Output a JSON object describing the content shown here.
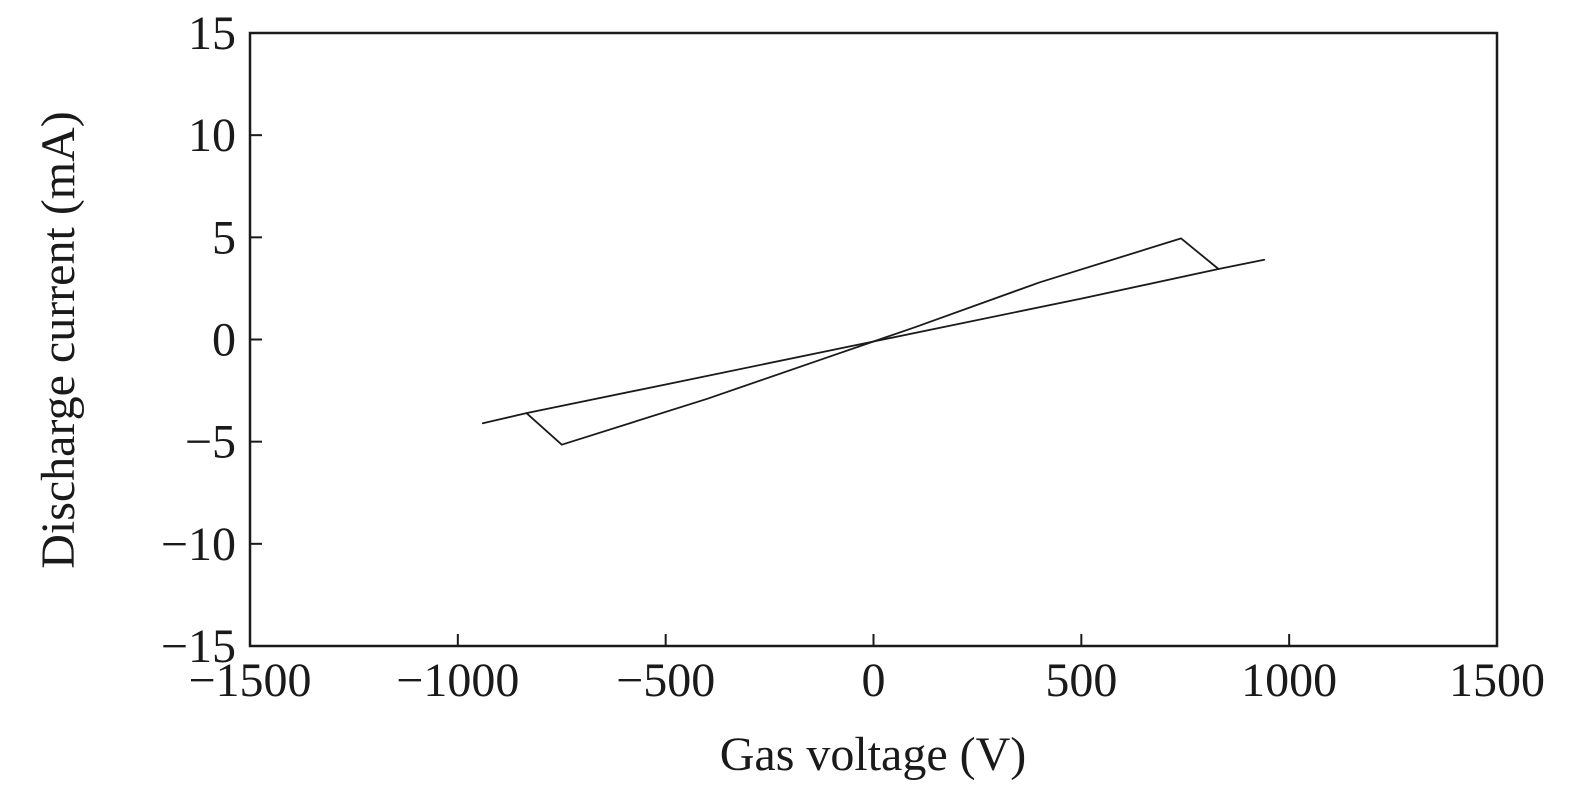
{
  "chart_data": {
    "type": "line",
    "title": "",
    "xlabel": "Gas voltage (V)",
    "ylabel": "Discharge current (mA)",
    "xlim": [
      -1500,
      1500
    ],
    "ylim": [
      -15,
      15
    ],
    "x_ticks": [
      -1500,
      -1000,
      -500,
      0,
      500,
      1000,
      1500
    ],
    "x_tick_labels": [
      "−1500",
      "−1000",
      "−500",
      "0",
      "500",
      "1000",
      "1500"
    ],
    "y_ticks": [
      15,
      10,
      5,
      0,
      -5,
      -10,
      -15
    ],
    "y_tick_labels": [
      "15",
      "10",
      "5",
      "0",
      "−5",
      "−10",
      "−15"
    ],
    "grid": false,
    "legend": "none",
    "line_color": "#1a1a1a",
    "series": [
      {
        "x": [
          -940,
          -835,
          -750,
          -400,
          -100,
          0,
          100,
          400,
          740,
          830,
          940
        ],
        "y": [
          -4.1,
          -3.6,
          -5.15,
          -2.9,
          -0.8,
          -0.1,
          0.6,
          2.8,
          4.95,
          3.45,
          3.9
        ]
      },
      {
        "x": [
          -835,
          -500,
          0,
          500,
          830
        ],
        "y": [
          -3.6,
          -2.2,
          -0.1,
          2.0,
          3.45
        ]
      }
    ]
  }
}
